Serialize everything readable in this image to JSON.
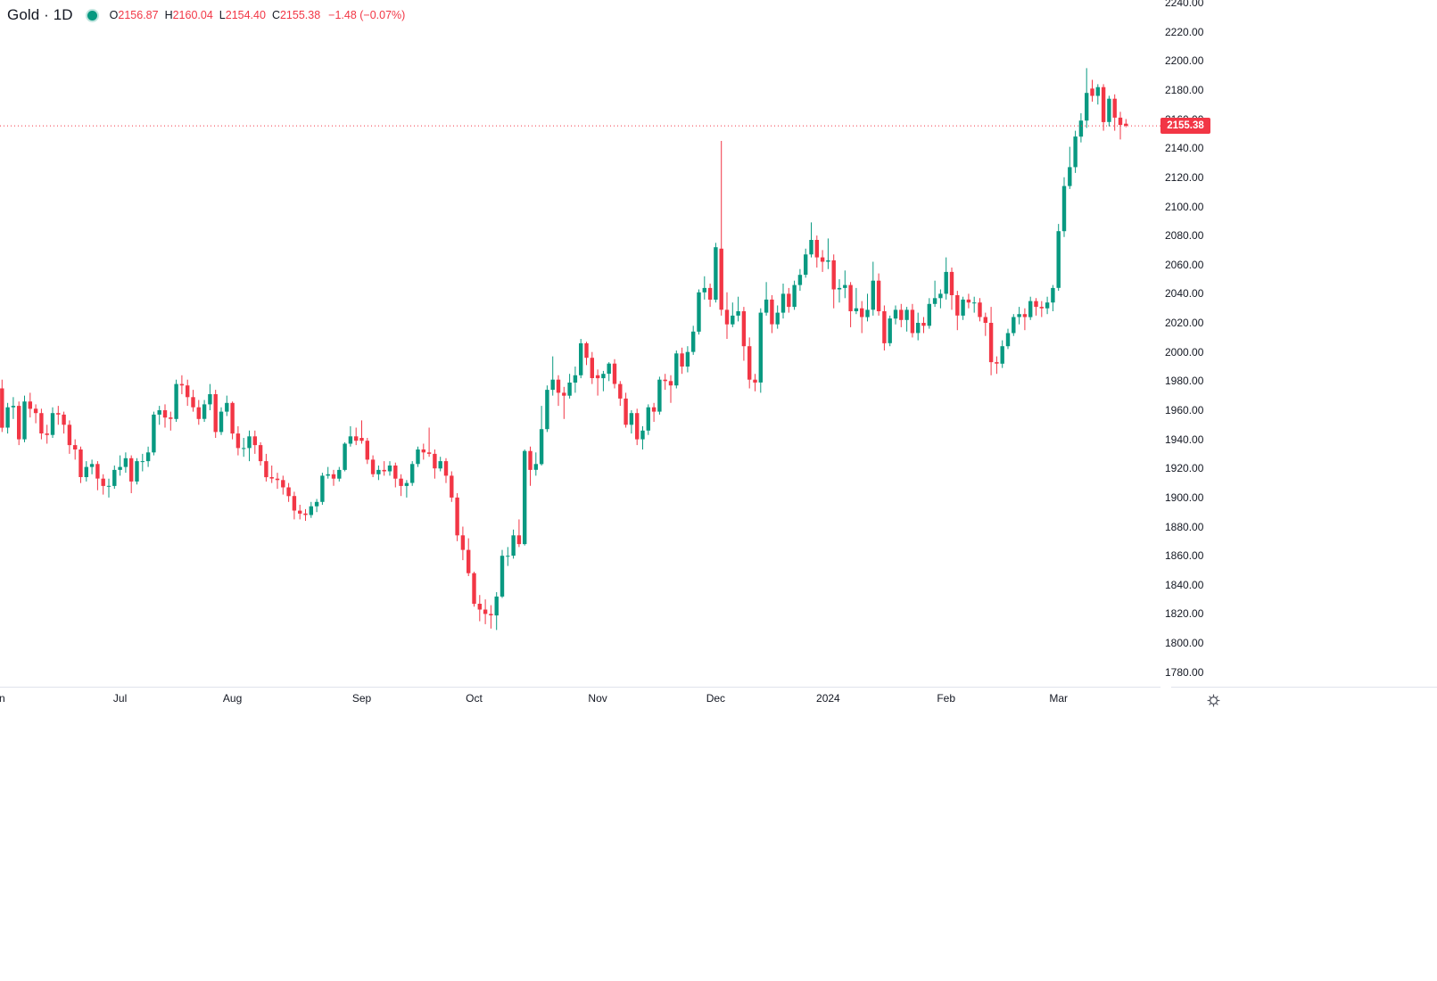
{
  "header": {
    "title": "Gold · 1D",
    "status_dot_color": "#089981",
    "ohlc_items": [
      {
        "label": "O",
        "value": "2156.87"
      },
      {
        "label": "H",
        "value": "2160.04"
      },
      {
        "label": "L",
        "value": "2154.40"
      },
      {
        "label": "C",
        "value": "2155.38"
      }
    ],
    "change_text": "−1.48 (−0.07%)",
    "value_color": "#f23645"
  },
  "price_scale": {
    "labels": [
      "2240.00",
      "2220.00",
      "2200.00",
      "2180.00",
      "2160.00",
      "2140.00",
      "2120.00",
      "2100.00",
      "2080.00",
      "2060.00",
      "2040.00",
      "2020.00",
      "2000.00",
      "1980.00",
      "1960.00",
      "1940.00",
      "1920.00",
      "1900.00",
      "1880.00",
      "1860.00",
      "1840.00",
      "1820.00",
      "1800.00",
      "1780.00"
    ],
    "current_price_badge": {
      "text": "2155.38",
      "bg": "#f23645",
      "text_color": "#ffffff"
    }
  },
  "time_scale": {
    "ticks": [
      {
        "label": "Jun",
        "candle_index": 0
      },
      {
        "label": "Jul",
        "candle_index": 22
      },
      {
        "label": "Aug",
        "candle_index": 42
      },
      {
        "label": "Sep",
        "candle_index": 65
      },
      {
        "label": "Oct",
        "candle_index": 85
      },
      {
        "label": "Nov",
        "candle_index": 107
      },
      {
        "label": "Dec",
        "candle_index": 128
      },
      {
        "label": "2024",
        "candle_index": 148
      },
      {
        "label": "Feb",
        "candle_index": 169
      },
      {
        "label": "Mar",
        "candle_index": 189
      }
    ]
  },
  "colors": {
    "up": "#089981",
    "down": "#f23645",
    "axis_text": "#131722",
    "axis_line": "#e0e3eb",
    "price_line": "#f23645"
  },
  "chart_data": {
    "type": "candlestick",
    "title": "Gold 1D daily candles, Jun 2023 - Mar 2024",
    "up_color": "#089981",
    "down_color": "#f23645",
    "price_line": {
      "value": 2155.38,
      "style": "dotted",
      "color": "#f23645"
    },
    "y_axis": {
      "visible_min": 1770,
      "visible_max": 2242,
      "tick_step": 20,
      "grid": false
    },
    "x_axis": {
      "month_labels": [
        "Jun",
        "Jul",
        "Aug",
        "Sep",
        "Oct",
        "Nov",
        "Dec",
        "2024",
        "Feb",
        "Mar"
      ]
    },
    "ohlc_format": "[open, high, low, close]",
    "candles": [
      [
        1955,
        1983,
        1953,
        1974
      ],
      [
        1975,
        1981,
        1945,
        1948
      ],
      [
        1948,
        1965,
        1944,
        1962
      ],
      [
        1962,
        1969,
        1954,
        1963
      ],
      [
        1963,
        1966,
        1936,
        1940
      ],
      [
        1940,
        1970,
        1938,
        1966
      ],
      [
        1966,
        1972,
        1955,
        1961
      ],
      [
        1961,
        1964,
        1951,
        1958
      ],
      [
        1958,
        1961,
        1940,
        1944
      ],
      [
        1944,
        1950,
        1937,
        1943
      ],
      [
        1943,
        1962,
        1941,
        1958
      ],
      [
        1958,
        1963,
        1950,
        1957
      ],
      [
        1957,
        1959,
        1944,
        1950
      ],
      [
        1950,
        1953,
        1930,
        1936
      ],
      [
        1936,
        1940,
        1926,
        1933
      ],
      [
        1933,
        1935,
        1910,
        1914
      ],
      [
        1914,
        1925,
        1911,
        1921
      ],
      [
        1921,
        1926,
        1916,
        1923
      ],
      [
        1923,
        1925,
        1905,
        1913
      ],
      [
        1913,
        1916,
        1902,
        1908
      ],
      [
        1908,
        1913,
        1900,
        1908
      ],
      [
        1908,
        1922,
        1906,
        1919
      ],
      [
        1919,
        1929,
        1915,
        1921
      ],
      [
        1921,
        1931,
        1917,
        1927
      ],
      [
        1927,
        1929,
        1903,
        1911
      ],
      [
        1911,
        1927,
        1909,
        1925
      ],
      [
        1925,
        1930,
        1918,
        1925
      ],
      [
        1925,
        1935,
        1921,
        1931
      ],
      [
        1931,
        1959,
        1929,
        1957
      ],
      [
        1957,
        1963,
        1950,
        1960
      ],
      [
        1960,
        1964,
        1948,
        1955
      ],
      [
        1955,
        1959,
        1946,
        1954
      ],
      [
        1954,
        1981,
        1952,
        1978
      ],
      [
        1978,
        1984,
        1971,
        1977
      ],
      [
        1977,
        1981,
        1963,
        1969
      ],
      [
        1969,
        1974,
        1959,
        1962
      ],
      [
        1962,
        1967,
        1950,
        1954
      ],
      [
        1954,
        1967,
        1952,
        1964
      ],
      [
        1964,
        1978,
        1960,
        1971
      ],
      [
        1971,
        1974,
        1941,
        1945
      ],
      [
        1945,
        1962,
        1943,
        1959
      ],
      [
        1959,
        1970,
        1956,
        1965
      ],
      [
        1965,
        1966,
        1940,
        1944
      ],
      [
        1944,
        1949,
        1929,
        1934
      ],
      [
        1934,
        1941,
        1928,
        1934
      ],
      [
        1934,
        1946,
        1925,
        1942
      ],
      [
        1942,
        1946,
        1930,
        1936
      ],
      [
        1936,
        1938,
        1922,
        1925
      ],
      [
        1925,
        1930,
        1911,
        1914
      ],
      [
        1914,
        1922,
        1910,
        1913
      ],
      [
        1913,
        1917,
        1906,
        1912
      ],
      [
        1912,
        1915,
        1902,
        1907
      ],
      [
        1907,
        1910,
        1897,
        1901
      ],
      [
        1901,
        1904,
        1885,
        1891
      ],
      [
        1891,
        1895,
        1885,
        1889
      ],
      [
        1889,
        1892,
        1884,
        1888
      ],
      [
        1888,
        1897,
        1886,
        1894
      ],
      [
        1894,
        1899,
        1890,
        1897
      ],
      [
        1897,
        1917,
        1895,
        1915
      ],
      [
        1915,
        1921,
        1913,
        1916
      ],
      [
        1916,
        1919,
        1908,
        1913
      ],
      [
        1913,
        1921,
        1911,
        1919
      ],
      [
        1919,
        1938,
        1918,
        1937
      ],
      [
        1937,
        1949,
        1935,
        1942
      ],
      [
        1942,
        1948,
        1936,
        1939
      ],
      [
        1941,
        1953,
        1937,
        1939
      ],
      [
        1939,
        1941,
        1923,
        1926
      ],
      [
        1926,
        1929,
        1914,
        1916
      ],
      [
        1916,
        1922,
        1912,
        1919
      ],
      [
        1919,
        1925,
        1915,
        1918
      ],
      [
        1918,
        1925,
        1915,
        1922
      ],
      [
        1922,
        1924,
        1907,
        1913
      ],
      [
        1913,
        1916,
        1901,
        1908
      ],
      [
        1908,
        1912,
        1900,
        1910
      ],
      [
        1910,
        1925,
        1908,
        1923
      ],
      [
        1923,
        1935,
        1921,
        1933
      ],
      [
        1933,
        1937,
        1926,
        1931
      ],
      [
        1931,
        1948,
        1928,
        1930
      ],
      [
        1930,
        1933,
        1913,
        1920
      ],
      [
        1920,
        1928,
        1918,
        1925
      ],
      [
        1925,
        1927,
        1910,
        1915
      ],
      [
        1915,
        1918,
        1897,
        1900
      ],
      [
        1900,
        1903,
        1870,
        1874
      ],
      [
        1874,
        1880,
        1857,
        1864
      ],
      [
        1864,
        1872,
        1846,
        1848
      ],
      [
        1848,
        1849,
        1825,
        1827
      ],
      [
        1827,
        1833,
        1815,
        1823
      ],
      [
        1823,
        1830,
        1813,
        1820
      ],
      [
        1820,
        1826,
        1810,
        1819
      ],
      [
        1819,
        1835,
        1809,
        1832
      ],
      [
        1832,
        1864,
        1831,
        1860
      ],
      [
        1860,
        1866,
        1853,
        1860
      ],
      [
        1860,
        1878,
        1858,
        1874
      ],
      [
        1874,
        1885,
        1866,
        1868
      ],
      [
        1868,
        1933,
        1867,
        1932
      ],
      [
        1932,
        1935,
        1908,
        1919
      ],
      [
        1919,
        1931,
        1915,
        1923
      ],
      [
        1923,
        1963,
        1922,
        1947
      ],
      [
        1947,
        1977,
        1945,
        1974
      ],
      [
        1974,
        1997,
        1970,
        1981
      ],
      [
        1981,
        1984,
        1963,
        1972
      ],
      [
        1972,
        1976,
        1954,
        1970
      ],
      [
        1970,
        1985,
        1968,
        1979
      ],
      [
        1979,
        1990,
        1972,
        1984
      ],
      [
        1984,
        2009,
        1982,
        2006
      ],
      [
        2006,
        2007,
        1991,
        1996
      ],
      [
        1996,
        2000,
        1978,
        1982
      ],
      [
        1984,
        1988,
        1970,
        1982
      ],
      [
        1982,
        1987,
        1973,
        1985
      ],
      [
        1985,
        1993,
        1980,
        1992
      ],
      [
        1992,
        1995,
        1975,
        1978
      ],
      [
        1978,
        1980,
        1963,
        1968
      ],
      [
        1968,
        1972,
        1948,
        1950
      ],
      [
        1950,
        1960,
        1944,
        1958
      ],
      [
        1958,
        1961,
        1936,
        1940
      ],
      [
        1940,
        1949,
        1933,
        1946
      ],
      [
        1946,
        1964,
        1943,
        1962
      ],
      [
        1962,
        1965,
        1952,
        1959
      ],
      [
        1959,
        1983,
        1957,
        1981
      ],
      [
        1981,
        1985,
        1974,
        1980
      ],
      [
        1980,
        1984,
        1965,
        1977
      ],
      [
        1977,
        2001,
        1975,
        1999
      ],
      [
        1999,
        2003,
        1985,
        1990
      ],
      [
        1990,
        2004,
        1986,
        2000
      ],
      [
        2000,
        2018,
        1998,
        2014
      ],
      [
        2014,
        2043,
        2012,
        2041
      ],
      [
        2041,
        2052,
        2036,
        2044
      ],
      [
        2044,
        2047,
        2031,
        2036
      ],
      [
        2036,
        2075,
        2034,
        2072
      ],
      [
        2071,
        2145,
        2025,
        2029
      ],
      [
        2029,
        2041,
        2009,
        2019
      ],
      [
        2019,
        2034,
        2017,
        2025
      ],
      [
        2025,
        2038,
        2021,
        2028
      ],
      [
        2028,
        2031,
        1994,
        2004
      ],
      [
        2004,
        2010,
        1975,
        1981
      ],
      [
        1981,
        1985,
        1973,
        1979
      ],
      [
        1979,
        2030,
        1972,
        2027
      ],
      [
        2027,
        2048,
        2025,
        2036
      ],
      [
        2036,
        2039,
        2013,
        2019
      ],
      [
        2019,
        2032,
        2016,
        2027
      ],
      [
        2027,
        2047,
        2023,
        2040
      ],
      [
        2040,
        2044,
        2027,
        2031
      ],
      [
        2031,
        2049,
        2029,
        2046
      ],
      [
        2046,
        2057,
        2042,
        2053
      ],
      [
        2053,
        2071,
        2051,
        2067
      ],
      [
        2067,
        2089,
        2065,
        2077
      ],
      [
        2077,
        2080,
        2058,
        2065
      ],
      [
        2065,
        2070,
        2055,
        2062
      ],
      [
        2062,
        2078,
        2057,
        2063
      ],
      [
        2063,
        2067,
        2030,
        2043
      ],
      [
        2043,
        2050,
        2034,
        2044
      ],
      [
        2044,
        2056,
        2037,
        2046
      ],
      [
        2046,
        2048,
        2017,
        2028
      ],
      [
        2028,
        2044,
        2026,
        2030
      ],
      [
        2030,
        2035,
        2013,
        2024
      ],
      [
        2024,
        2040,
        2021,
        2029
      ],
      [
        2029,
        2062,
        2025,
        2049
      ],
      [
        2049,
        2054,
        2025,
        2028
      ],
      [
        2028,
        2032,
        2001,
        2006
      ],
      [
        2006,
        2025,
        2004,
        2023
      ],
      [
        2023,
        2032,
        2019,
        2029
      ],
      [
        2029,
        2033,
        2017,
        2022
      ],
      [
        2022,
        2031,
        2014,
        2029
      ],
      [
        2029,
        2033,
        2010,
        2013
      ],
      [
        2013,
        2027,
        2008,
        2020
      ],
      [
        2020,
        2024,
        2013,
        2018
      ],
      [
        2018,
        2037,
        2016,
        2033
      ],
      [
        2033,
        2049,
        2031,
        2037
      ],
      [
        2037,
        2043,
        2030,
        2040
      ],
      [
        2040,
        2065,
        2036,
        2055
      ],
      [
        2055,
        2058,
        2029,
        2039
      ],
      [
        2039,
        2042,
        2015,
        2025
      ],
      [
        2025,
        2038,
        2022,
        2036
      ],
      [
        2036,
        2040,
        2030,
        2034
      ],
      [
        2034,
        2038,
        2027,
        2034
      ],
      [
        2034,
        2037,
        2021,
        2024
      ],
      [
        2024,
        2027,
        2011,
        2020
      ],
      [
        2020,
        2031,
        1984,
        1993
      ],
      [
        1993,
        1997,
        1985,
        1992
      ],
      [
        1992,
        2008,
        1989,
        2004
      ],
      [
        2004,
        2016,
        2002,
        2013
      ],
      [
        2013,
        2026,
        2011,
        2024
      ],
      [
        2024,
        2031,
        2019,
        2026
      ],
      [
        2026,
        2030,
        2015,
        2024
      ],
      [
        2024,
        2038,
        2022,
        2035
      ],
      [
        2035,
        2037,
        2025,
        2031
      ],
      [
        2031,
        2035,
        2024,
        2030
      ],
      [
        2030,
        2038,
        2026,
        2034
      ],
      [
        2034,
        2046,
        2028,
        2044
      ],
      [
        2044,
        2088,
        2042,
        2083
      ],
      [
        2083,
        2120,
        2079,
        2114
      ],
      [
        2114,
        2141,
        2112,
        2127
      ],
      [
        2127,
        2152,
        2123,
        2148
      ],
      [
        2148,
        2164,
        2144,
        2159
      ],
      [
        2159,
        2195,
        2154,
        2178
      ],
      [
        2181,
        2187,
        2172,
        2176
      ],
      [
        2176,
        2184,
        2170,
        2182
      ],
      [
        2182,
        2184,
        2152,
        2158
      ],
      [
        2158,
        2176,
        2155,
        2174
      ],
      [
        2174,
        2177,
        2152,
        2161
      ],
      [
        2161,
        2165,
        2146,
        2156
      ],
      [
        2156.87,
        2160.04,
        2154.4,
        2155.38
      ]
    ]
  }
}
